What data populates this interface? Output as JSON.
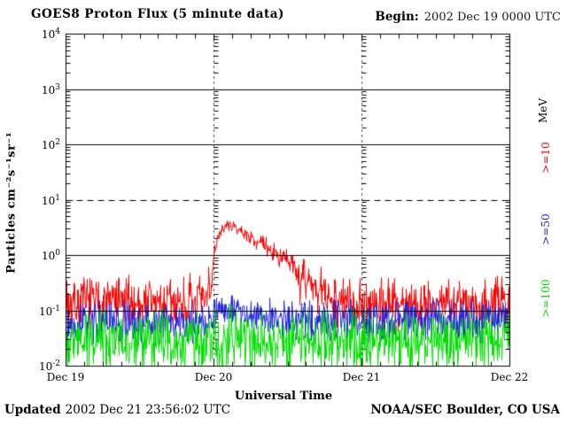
{
  "header": {
    "title": "GOES8 Proton Flux (5 minute data)",
    "begin_label": "Begin:",
    "begin_value": "2002 Dec 19 0000 UTC"
  },
  "footer": {
    "updated_label": "Updated",
    "updated_value": "2002 Dec 21 23:56:02 UTC",
    "credit": "NOAA/SEC Boulder, CO USA"
  },
  "right_axis": {
    "units": "MeV"
  },
  "chart_data": {
    "type": "line",
    "title": "GOES8 Proton Flux (5 minute data)",
    "xlabel": "Universal Time",
    "ylabel": "Particles cm⁻²s⁻¹sr⁻¹",
    "x_tick_labels": [
      "Dec 19",
      "Dec 20",
      "Dec 21",
      "Dec 22"
    ],
    "x_range_days": [
      0,
      3
    ],
    "y_tick_exponents": [
      4,
      3,
      2,
      1,
      0,
      -1,
      -2
    ],
    "y_log_range": [
      -2,
      4
    ],
    "sample_interval_minutes": 5,
    "x_minor_tick_hours": 3,
    "grid": {
      "hlines_solid_exp": [
        3,
        2,
        0,
        -1
      ],
      "hlines_dashed_exp": [
        1
      ],
      "vlines_dashed_days": [
        1,
        2
      ]
    },
    "series": [
      {
        "name": ">=10 MeV proton flux",
        "label": ">=10",
        "color": "#fa0000",
        "seed": 7,
        "envelope_log10": [
          [
            0.0,
            -0.85,
            0.28
          ],
          [
            0.92,
            -0.85,
            0.28
          ],
          [
            0.955,
            -0.85,
            0.28
          ],
          [
            0.965,
            -0.25,
            0.12
          ],
          [
            0.972,
            -0.8,
            0.15
          ],
          [
            0.985,
            -0.5,
            0.1
          ],
          [
            1.0,
            0.05,
            0.08
          ],
          [
            1.04,
            0.42,
            0.06
          ],
          [
            1.09,
            0.55,
            0.05
          ],
          [
            1.14,
            0.5,
            0.05
          ],
          [
            1.22,
            0.38,
            0.07
          ],
          [
            1.3,
            0.25,
            0.09
          ],
          [
            1.38,
            0.1,
            0.11
          ],
          [
            1.46,
            -0.05,
            0.13
          ],
          [
            1.54,
            -0.22,
            0.16
          ],
          [
            1.63,
            -0.42,
            0.2
          ],
          [
            1.73,
            -0.65,
            0.24
          ],
          [
            1.83,
            -0.8,
            0.28
          ],
          [
            1.95,
            -0.87,
            0.28
          ],
          [
            3.0,
            -0.85,
            0.28
          ]
        ],
        "spikes_log10": [
          [
            1.585,
            -0.9
          ],
          [
            1.62,
            -0.78
          ],
          [
            1.7,
            -1.05
          ],
          [
            1.76,
            -0.95
          ]
        ],
        "event": {
          "onset_day": 0.99,
          "peak_day": 1.09,
          "peak_flux": 3.6
        }
      },
      {
        "name": ">=50 MeV proton flux",
        "label": ">=50",
        "color": "#2222dd",
        "seed": 13,
        "envelope_log10": [
          [
            0.0,
            -1.22,
            0.22
          ],
          [
            0.95,
            -1.22,
            0.22
          ],
          [
            1.02,
            -1.0,
            0.16
          ],
          [
            1.15,
            -1.02,
            0.16
          ],
          [
            1.3,
            -1.1,
            0.18
          ],
          [
            1.5,
            -1.15,
            0.2
          ],
          [
            2.0,
            -1.18,
            0.22
          ],
          [
            3.0,
            -1.15,
            0.22
          ]
        ],
        "spikes_log10": []
      },
      {
        "name": ">=100 MeV proton flux",
        "label": ">=100",
        "color": "#00dd00",
        "seed": 99,
        "envelope_log10": [
          [
            0.0,
            -1.55,
            0.33
          ],
          [
            3.0,
            -1.55,
            0.33
          ]
        ],
        "spikes_log10": []
      }
    ]
  }
}
